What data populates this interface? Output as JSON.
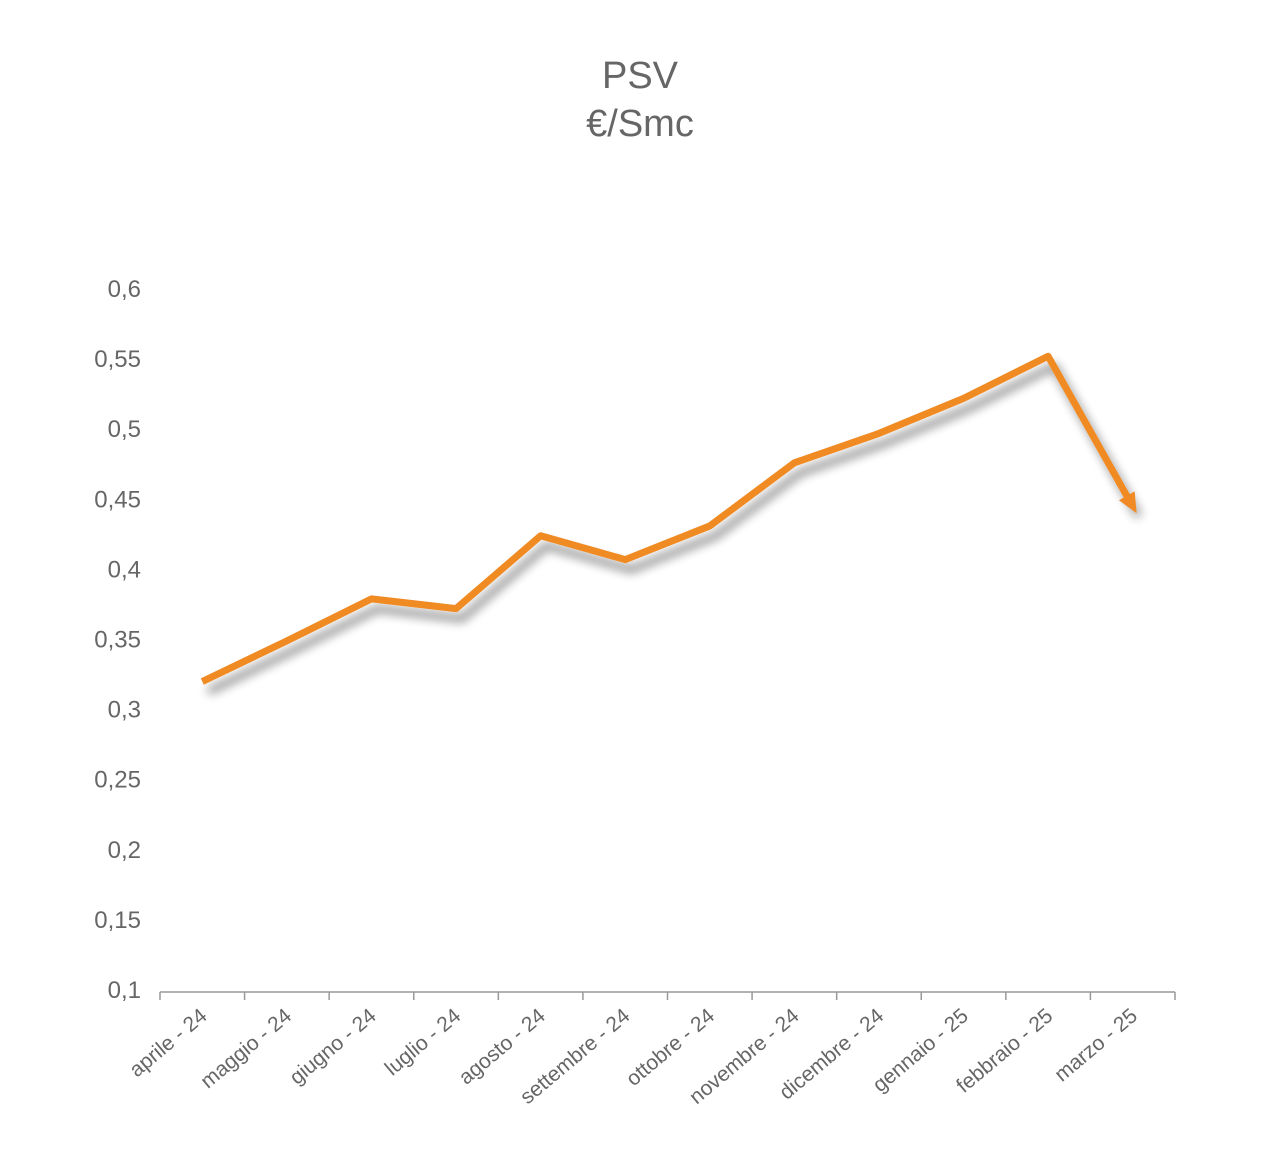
{
  "chart_data": {
    "type": "line",
    "title": "PSV",
    "subtitle": "€/Smc",
    "xlabel": "",
    "ylabel": "",
    "categories": [
      "aprile - 24",
      "maggio - 24",
      "giugno - 24",
      "luglio - 24",
      "agosto - 24",
      "settembre - 24",
      "ottobre - 24",
      "novembre - 24",
      "dicembre - 24",
      "gennaio - 25",
      "febbraio - 25",
      "marzo - 25"
    ],
    "series": [
      {
        "values": [
          0.32,
          0.349,
          0.379,
          0.372,
          0.424,
          0.407,
          0.431,
          0.476,
          0.497,
          0.522,
          0.552,
          0.445
        ]
      }
    ],
    "yticks": [
      "0,1",
      "0,15",
      "0,2",
      "0,25",
      "0,3",
      "0,35",
      "0,4",
      "0,45",
      "0,5",
      "0,55",
      "0,6"
    ],
    "ylim": [
      0.1,
      0.6
    ],
    "grid": false,
    "legend": "none",
    "line_color": "#f08a24",
    "text_color": "#666666",
    "axis_color": "#999999"
  }
}
